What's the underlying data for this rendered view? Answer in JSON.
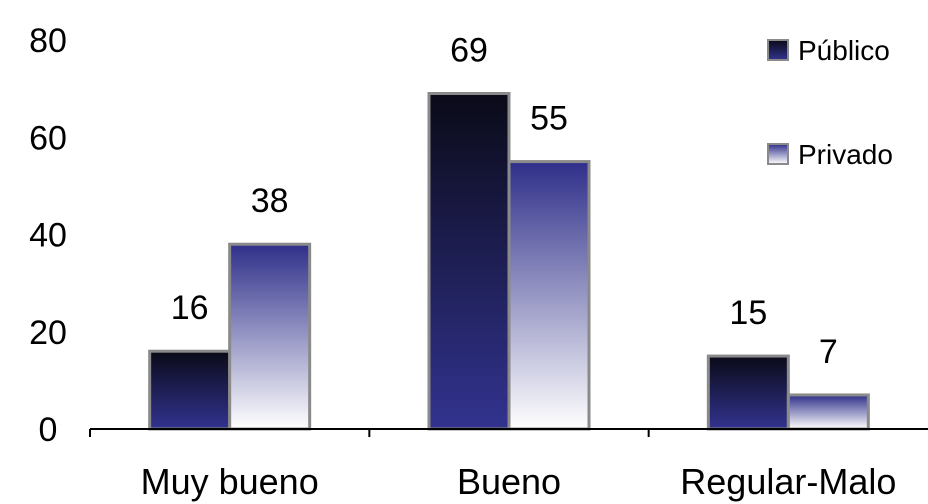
{
  "chart_data": {
    "type": "bar",
    "categories": [
      "Muy bueno",
      "Bueno",
      "Regular-Malo"
    ],
    "series": [
      {
        "name": "Público",
        "values": [
          16,
          69,
          15
        ]
      },
      {
        "name": "Privado",
        "values": [
          38,
          55,
          7
        ]
      }
    ],
    "ylim": [
      0,
      80
    ],
    "yticks": [
      0,
      20,
      40,
      60,
      80
    ],
    "data_labels": true,
    "legend_position": "top-right",
    "grid": false
  },
  "colors": {
    "publico_top": "#0a0a18",
    "publico_bottom": "#32338f",
    "privado_top": "#2f2f8a",
    "privado_bottom": "#ffffff",
    "bar_border": "#8a8a8a",
    "axis": "#000000"
  }
}
